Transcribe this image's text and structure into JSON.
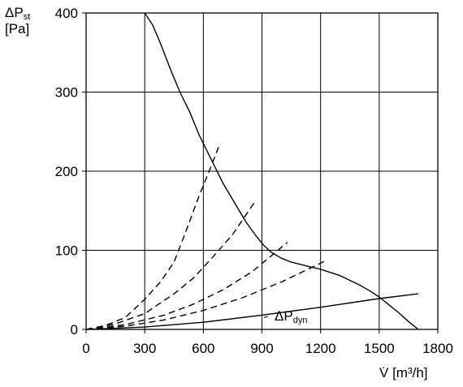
{
  "chart_data": {
    "type": "line",
    "ylabel": {
      "symbol": "ΔP",
      "subscript": "st",
      "unit": "[Pa]"
    },
    "xlabel": {
      "symbol": "V",
      "unit": "[m³/h]"
    },
    "xlim": [
      0,
      1800
    ],
    "ylim": [
      0,
      400
    ],
    "xticks": [
      0,
      300,
      600,
      900,
      1200,
      1500,
      1800
    ],
    "yticks": [
      0,
      100,
      200,
      300,
      400
    ],
    "grid": true,
    "series": [
      {
        "style": "solid",
        "x": [
          300,
          340,
          380,
          430,
          480,
          530,
          580,
          640,
          700,
          760,
          820,
          870,
          910,
          950,
          1000,
          1050,
          1100,
          1150,
          1200,
          1250,
          1300,
          1350,
          1400,
          1450,
          1500,
          1550,
          1600,
          1650,
          1700
        ],
        "y": [
          400,
          385,
          362,
          330,
          300,
          275,
          245,
          215,
          185,
          160,
          135,
          118,
          106,
          97,
          90,
          85,
          82,
          79,
          76,
          72,
          68,
          62,
          56,
          49,
          41,
          31,
          21,
          10,
          0
        ]
      },
      {
        "style": "dashed",
        "x": [
          0,
          100,
          200,
          300,
          380,
          450,
          520,
          580,
          630,
          685
        ],
        "y": [
          0,
          5,
          15,
          38,
          60,
          85,
          130,
          170,
          200,
          235
        ]
      },
      {
        "style": "dashed",
        "x": [
          0,
          150,
          300,
          450,
          550,
          650,
          750,
          860
        ],
        "y": [
          0,
          7,
          20,
          45,
          65,
          92,
          120,
          160
        ]
      },
      {
        "style": "dashed",
        "x": [
          0,
          200,
          400,
          550,
          700,
          850,
          1030
        ],
        "y": [
          0,
          6,
          18,
          32,
          50,
          73,
          110
        ]
      },
      {
        "style": "dashed",
        "x": [
          0,
          200,
          400,
          600,
          800,
          1000,
          1220
        ],
        "y": [
          0,
          4,
          12,
          24,
          40,
          60,
          86
        ]
      },
      {
        "style": "solid",
        "name": "ΔP",
        "name_subscript": "dyn",
        "x": [
          0,
          300,
          600,
          900,
          1200,
          1500,
          1700
        ],
        "y": [
          0,
          3,
          9,
          18,
          28,
          39,
          45
        ]
      }
    ]
  }
}
